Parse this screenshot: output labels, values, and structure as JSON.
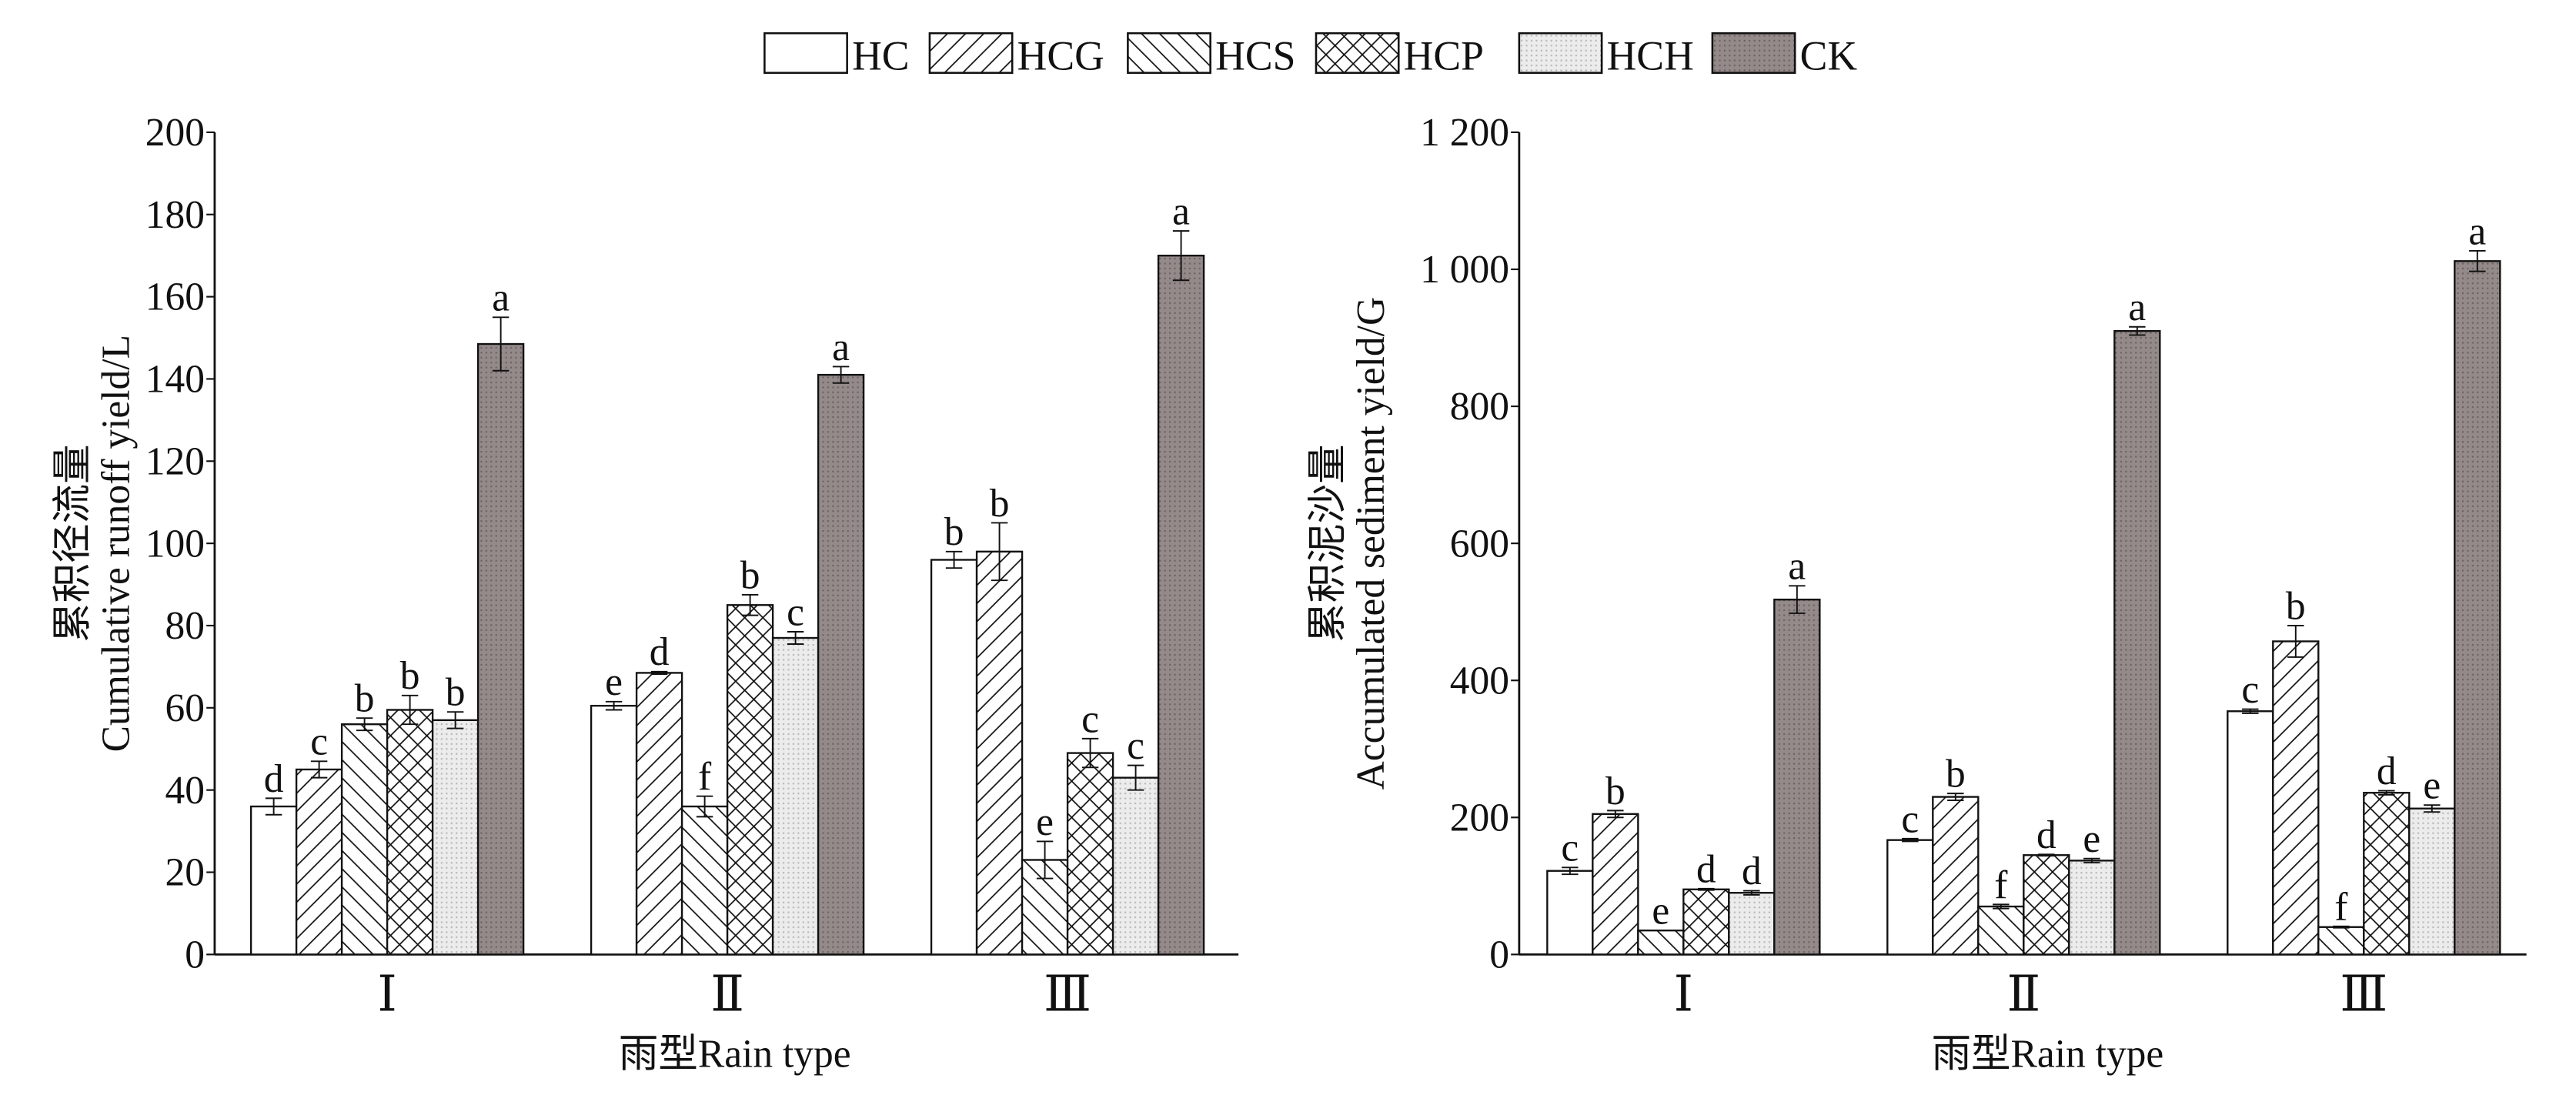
{
  "legend": [
    "HC",
    "HCG",
    "HCS",
    "HCP",
    "HCH",
    "CK"
  ],
  "colors": {
    "CK": "#8f8686",
    "HCH": "#e9e9e9",
    "outline": "#111111"
  },
  "chart_data": [
    {
      "type": "bar",
      "ylabel_cn": "累积径流量",
      "ylabel": "Cumulative runoff yield/L",
      "xlabel": "雨型Rain type",
      "categories": [
        "Ⅰ",
        "Ⅱ",
        "Ⅲ"
      ],
      "ylim": [
        0,
        200
      ],
      "yticks": [
        0,
        20,
        40,
        60,
        80,
        100,
        120,
        140,
        160,
        180,
        200
      ],
      "ytick_labels": [
        "0",
        "20",
        "40",
        "60",
        "80",
        "100",
        "120",
        "140",
        "160",
        "180",
        "200"
      ],
      "series": [
        {
          "name": "HC",
          "values": [
            36,
            60.5,
            96
          ],
          "errors": [
            2,
            1,
            2
          ],
          "letters": [
            "d",
            "e",
            "b"
          ]
        },
        {
          "name": "HCG",
          "values": [
            45,
            68.5,
            98
          ],
          "errors": [
            2,
            0.3,
            7
          ],
          "letters": [
            "c",
            "d",
            "b"
          ]
        },
        {
          "name": "HCS",
          "values": [
            56,
            36,
            23
          ],
          "errors": [
            1.5,
            2.5,
            4.5
          ],
          "letters": [
            "b",
            "f",
            "e"
          ]
        },
        {
          "name": "HCP",
          "values": [
            59.5,
            85,
            49
          ],
          "errors": [
            3.5,
            2.5,
            3.5
          ],
          "letters": [
            "b",
            "b",
            "c"
          ]
        },
        {
          "name": "HCH",
          "values": [
            57,
            77,
            43
          ],
          "errors": [
            2,
            1.5,
            3
          ],
          "letters": [
            "b",
            "c",
            "c"
          ]
        },
        {
          "name": "CK",
          "values": [
            148.5,
            141,
            170
          ],
          "errors": [
            6.5,
            2,
            6
          ],
          "letters": [
            "a",
            "a",
            "a"
          ]
        }
      ]
    },
    {
      "type": "bar",
      "ylabel_cn": "累积泥沙量",
      "ylabel": "Accumulated sediment yield/G",
      "xlabel": "雨型Rain type",
      "categories": [
        "Ⅰ",
        "Ⅱ",
        "Ⅲ"
      ],
      "ylim": [
        0,
        1200
      ],
      "yticks": [
        0,
        200,
        400,
        600,
        800,
        1000,
        1200
      ],
      "ytick_labels": [
        "0",
        "200",
        "400",
        "600",
        "800",
        "1 000",
        "1 200"
      ],
      "series": [
        {
          "name": "HC",
          "values": [
            122,
            167,
            355
          ],
          "errors": [
            5,
            2,
            3
          ],
          "letters": [
            "c",
            "c",
            "c"
          ]
        },
        {
          "name": "HCG",
          "values": [
            205,
            230,
            457
          ],
          "errors": [
            5,
            5,
            23
          ],
          "letters": [
            "b",
            "b",
            "b"
          ]
        },
        {
          "name": "HCS",
          "values": [
            35,
            70,
            40
          ],
          "errors": [
            0,
            3,
            1
          ],
          "letters": [
            "e",
            "f",
            "f"
          ]
        },
        {
          "name": "HCP",
          "values": [
            95,
            145,
            236
          ],
          "errors": [
            1,
            1,
            3
          ],
          "letters": [
            "d",
            "d",
            "d"
          ]
        },
        {
          "name": "HCH",
          "values": [
            90,
            137,
            213
          ],
          "errors": [
            3,
            3,
            5
          ],
          "letters": [
            "d",
            "e",
            "e"
          ]
        },
        {
          "name": "CK",
          "values": [
            518,
            910,
            1012
          ],
          "errors": [
            20,
            6,
            15
          ],
          "letters": [
            "a",
            "a",
            "a"
          ]
        }
      ]
    }
  ]
}
